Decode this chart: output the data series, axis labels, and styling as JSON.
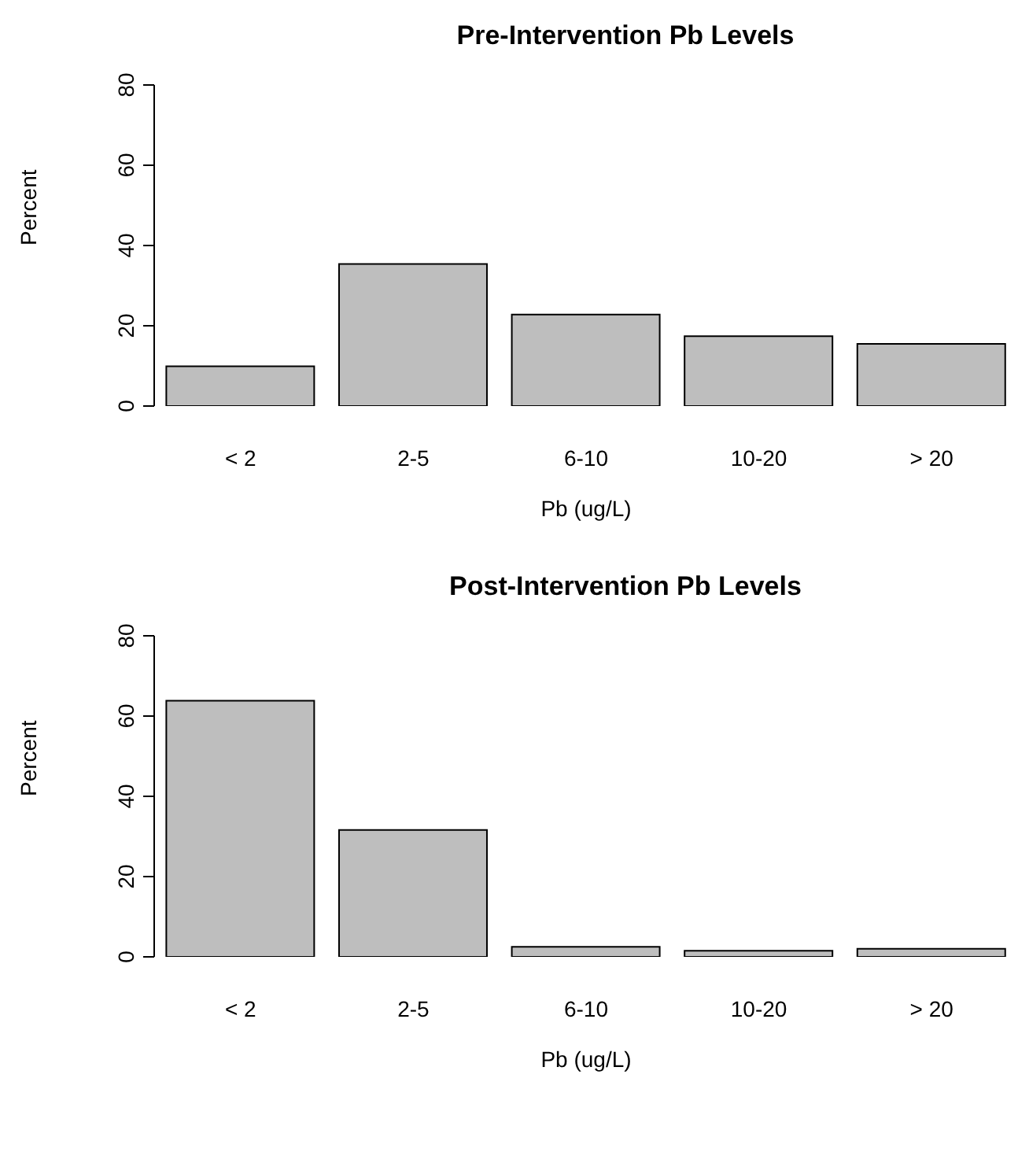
{
  "chart_data": [
    {
      "type": "bar",
      "title": "Pre-Intervention Pb Levels",
      "xlabel": "Pb (ug/L)",
      "ylabel": "Percent",
      "categories": [
        "< 2",
        "2-5",
        "6-10",
        "10-20",
        "> 20"
      ],
      "values": [
        9.9,
        35.4,
        22.8,
        17.4,
        15.5
      ],
      "color": "#bebebe",
      "ylim": [
        0,
        80
      ],
      "yticks": [
        0,
        20,
        40,
        60,
        80
      ],
      "grid": false,
      "legend": false
    },
    {
      "type": "bar",
      "title": "Post-Intervention Pb Levels",
      "xlabel": "Pb (ug/L)",
      "ylabel": "Percent",
      "categories": [
        "< 2",
        "2-5",
        "6-10",
        "10-20",
        "> 20"
      ],
      "values": [
        63.8,
        31.6,
        2.5,
        1.5,
        2.0
      ],
      "color": "#bebebe",
      "ylim": [
        0,
        80
      ],
      "yticks": [
        0,
        20,
        40,
        60,
        80
      ],
      "grid": false,
      "legend": false
    }
  ]
}
